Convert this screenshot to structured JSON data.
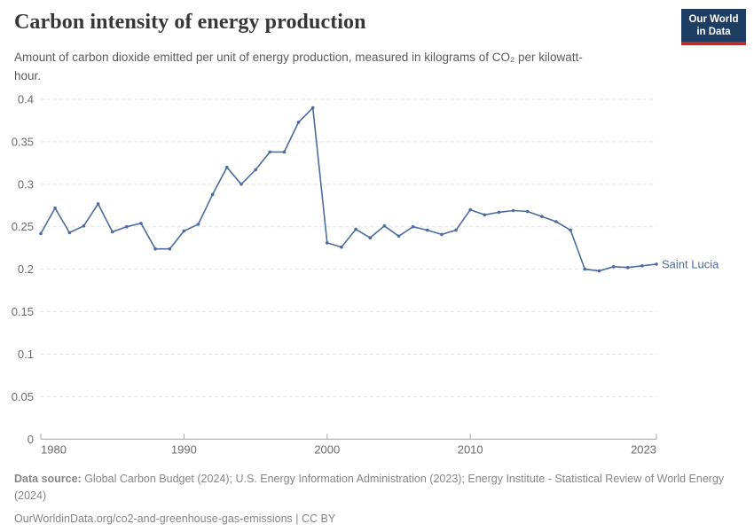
{
  "header": {
    "logo": {
      "line1": "Our World",
      "line2": "in Data",
      "bg_color": "#1d3d63",
      "accent_color": "#b82e2e"
    }
  },
  "chart_data": {
    "type": "line",
    "title": "Carbon intensity of energy production",
    "subtitle": "Amount of carbon dioxide emitted per unit of energy production, measured in kilograms of CO₂ per kilowatt-hour.",
    "xlabel": "",
    "ylabel": "",
    "xlim": [
      1980,
      2023
    ],
    "ylim": [
      0,
      0.4
    ],
    "x_ticks": [
      1980,
      1990,
      2000,
      2010,
      2023
    ],
    "y_ticks": [
      0,
      0.05,
      0.1,
      0.15,
      0.2,
      0.25,
      0.3,
      0.35,
      0.4
    ],
    "grid": "horizontal dashed",
    "legend_position": "end-of-line label",
    "series": [
      {
        "name": "Saint Lucia",
        "color": "#4c6b9e",
        "x": [
          1980,
          1981,
          1982,
          1983,
          1984,
          1985,
          1986,
          1987,
          1988,
          1989,
          1990,
          1991,
          1992,
          1993,
          1994,
          1995,
          1996,
          1997,
          1998,
          1999,
          2000,
          2001,
          2002,
          2003,
          2004,
          2005,
          2006,
          2007,
          2008,
          2009,
          2010,
          2011,
          2012,
          2013,
          2014,
          2015,
          2016,
          2017,
          2018,
          2019,
          2020,
          2021,
          2022,
          2023
        ],
        "values": [
          0.242,
          0.272,
          0.243,
          0.251,
          0.277,
          0.244,
          0.25,
          0.254,
          0.224,
          0.224,
          0.245,
          0.253,
          0.288,
          0.32,
          0.3,
          0.317,
          0.338,
          0.338,
          0.373,
          0.39,
          0.231,
          0.226,
          0.247,
          0.237,
          0.251,
          0.239,
          0.25,
          0.246,
          0.241,
          0.246,
          0.27,
          0.264,
          0.267,
          0.269,
          0.268,
          0.262,
          0.256,
          0.246,
          0.2,
          0.198,
          0.203,
          0.202,
          0.204,
          0.206
        ]
      }
    ]
  },
  "footer": {
    "datasource_label": "Data source:",
    "datasource_text": " Global Carbon Budget (2024); U.S. Energy Information Administration (2023); Energy Institute - Statistical Review of World Energy (2024)",
    "license_line": "OurWorldinData.org/co2-and-greenhouse-gas-emissions | CC BY"
  }
}
